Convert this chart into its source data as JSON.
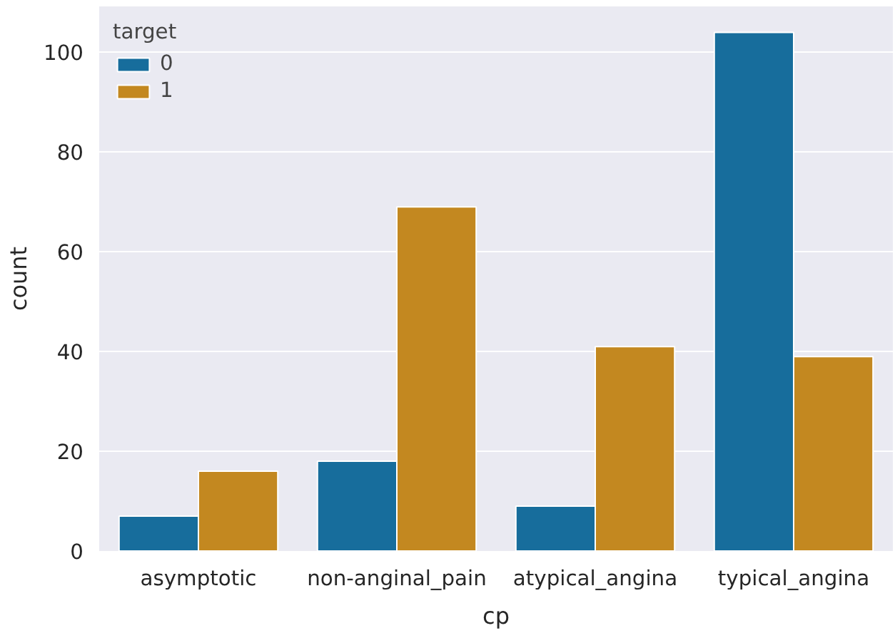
{
  "chart_data": {
    "type": "bar",
    "xlabel": "cp",
    "ylabel": "count",
    "legend_title": "target",
    "categories": [
      "asymptotic",
      "non-anginal_pain",
      "atypical_angina",
      "typical_angina"
    ],
    "series": [
      {
        "name": "0",
        "color": "#176d9c",
        "values": [
          7,
          18,
          9,
          104
        ]
      },
      {
        "name": "1",
        "color": "#c38820",
        "values": [
          16,
          69,
          41,
          39
        ]
      }
    ],
    "ylim": [
      0,
      109.2
    ],
    "yticks": [
      0,
      20,
      40,
      60,
      80,
      100
    ],
    "grid": "y",
    "legend": "top left"
  }
}
